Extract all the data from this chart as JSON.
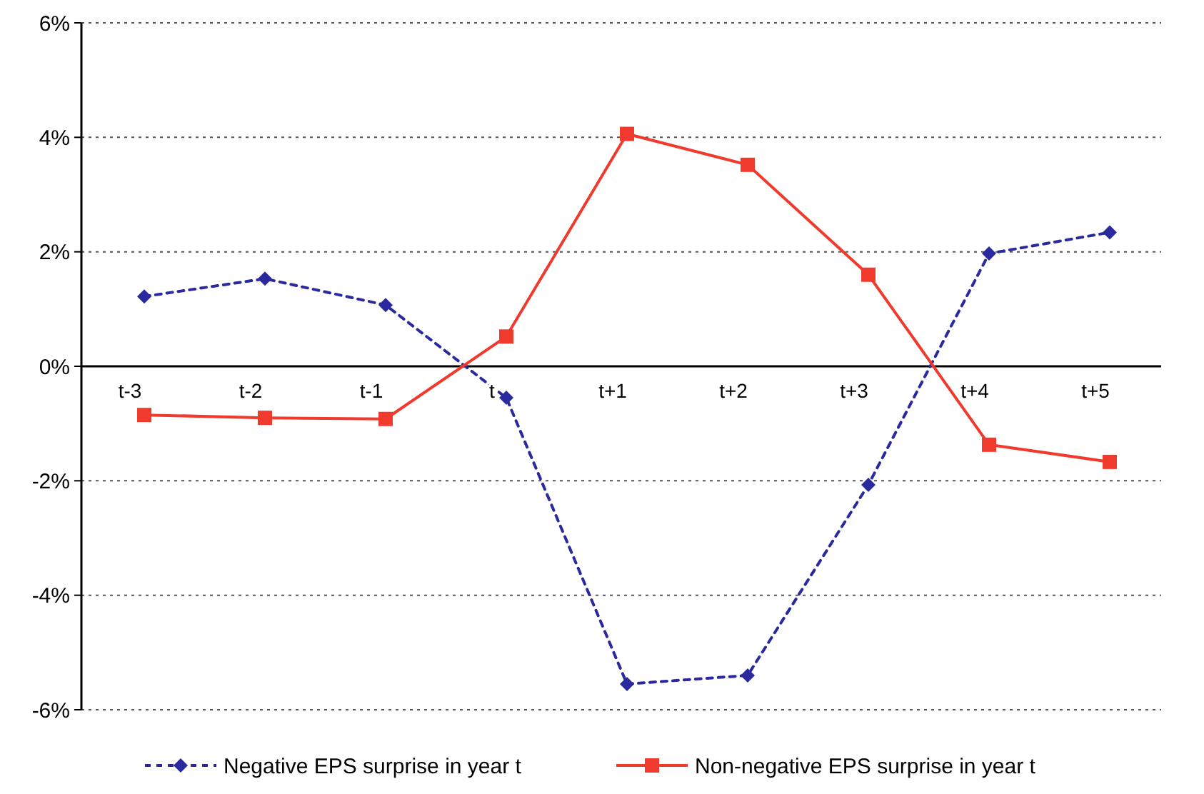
{
  "chart_data": {
    "type": "line",
    "categories": [
      "t-3",
      "t-2",
      "t-1",
      "t",
      "t+1",
      "t+2",
      "t+3",
      "t+4",
      "t+5"
    ],
    "series": [
      {
        "name": "Negative EPS surprise in year t",
        "color": "#2a2a9e",
        "marker": "diamond",
        "line_style": "dashed",
        "values": [
          1.22,
          1.53,
          1.07,
          -0.55,
          -5.55,
          -5.4,
          -2.07,
          1.97,
          2.34
        ]
      },
      {
        "name": "Non-negative EPS surprise in year t",
        "color": "#f03a2e",
        "marker": "square",
        "line_style": "solid",
        "values": [
          -0.85,
          -0.9,
          -0.92,
          0.52,
          4.06,
          3.52,
          1.6,
          -1.37,
          -1.67
        ]
      }
    ],
    "ylim": [
      -6,
      6
    ],
    "yticks": [
      {
        "value": -6,
        "label": "-6%"
      },
      {
        "value": -4,
        "label": "-4%"
      },
      {
        "value": -2,
        "label": "-2%"
      },
      {
        "value": 0,
        "label": "0%"
      },
      {
        "value": 2,
        "label": "2%"
      },
      {
        "value": 4,
        "label": "4%"
      },
      {
        "value": 6,
        "label": "6%"
      }
    ],
    "grid": "y",
    "legend": "bottom"
  }
}
